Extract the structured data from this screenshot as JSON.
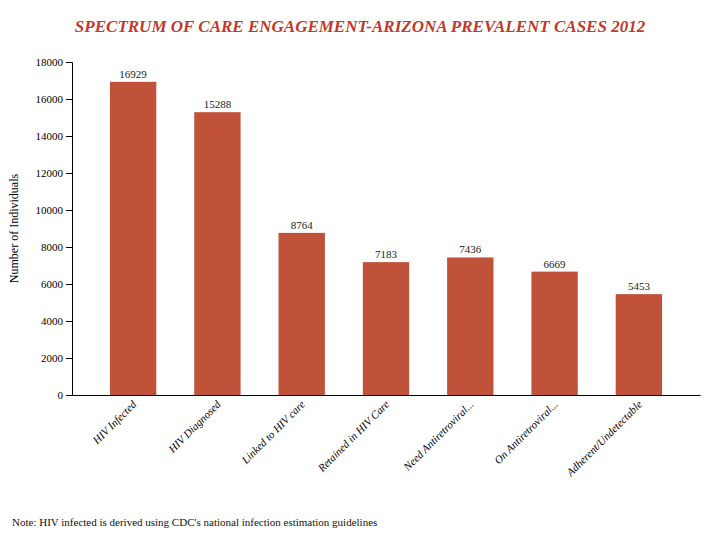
{
  "chart_data": {
    "type": "bar",
    "title": "SPECTRUM OF CARE ENGAGEMENT-ARIZONA PREVALENT CASES 2012",
    "categories": [
      "HIV Infected",
      "HIV Diagnosed",
      "Linked to HIV care",
      "Retained in HIV Care",
      "Need Antiretroviral...",
      "On Antiretroviral...",
      "Adherent/Undetectable"
    ],
    "values": [
      16929,
      15288,
      8764,
      7183,
      7436,
      6669,
      5453
    ],
    "color": "#c0523a",
    "y_label": "Number of Individuals",
    "ylim": [
      0,
      18000
    ],
    "yticks": [
      0,
      2000,
      4000,
      6000,
      8000,
      10000,
      12000,
      14000,
      16000,
      18000
    ],
    "grid": false,
    "data_labels": true,
    "annotations": [
      "Note: HIV infected is derived using CDC's national infection estimation guidelines"
    ]
  }
}
